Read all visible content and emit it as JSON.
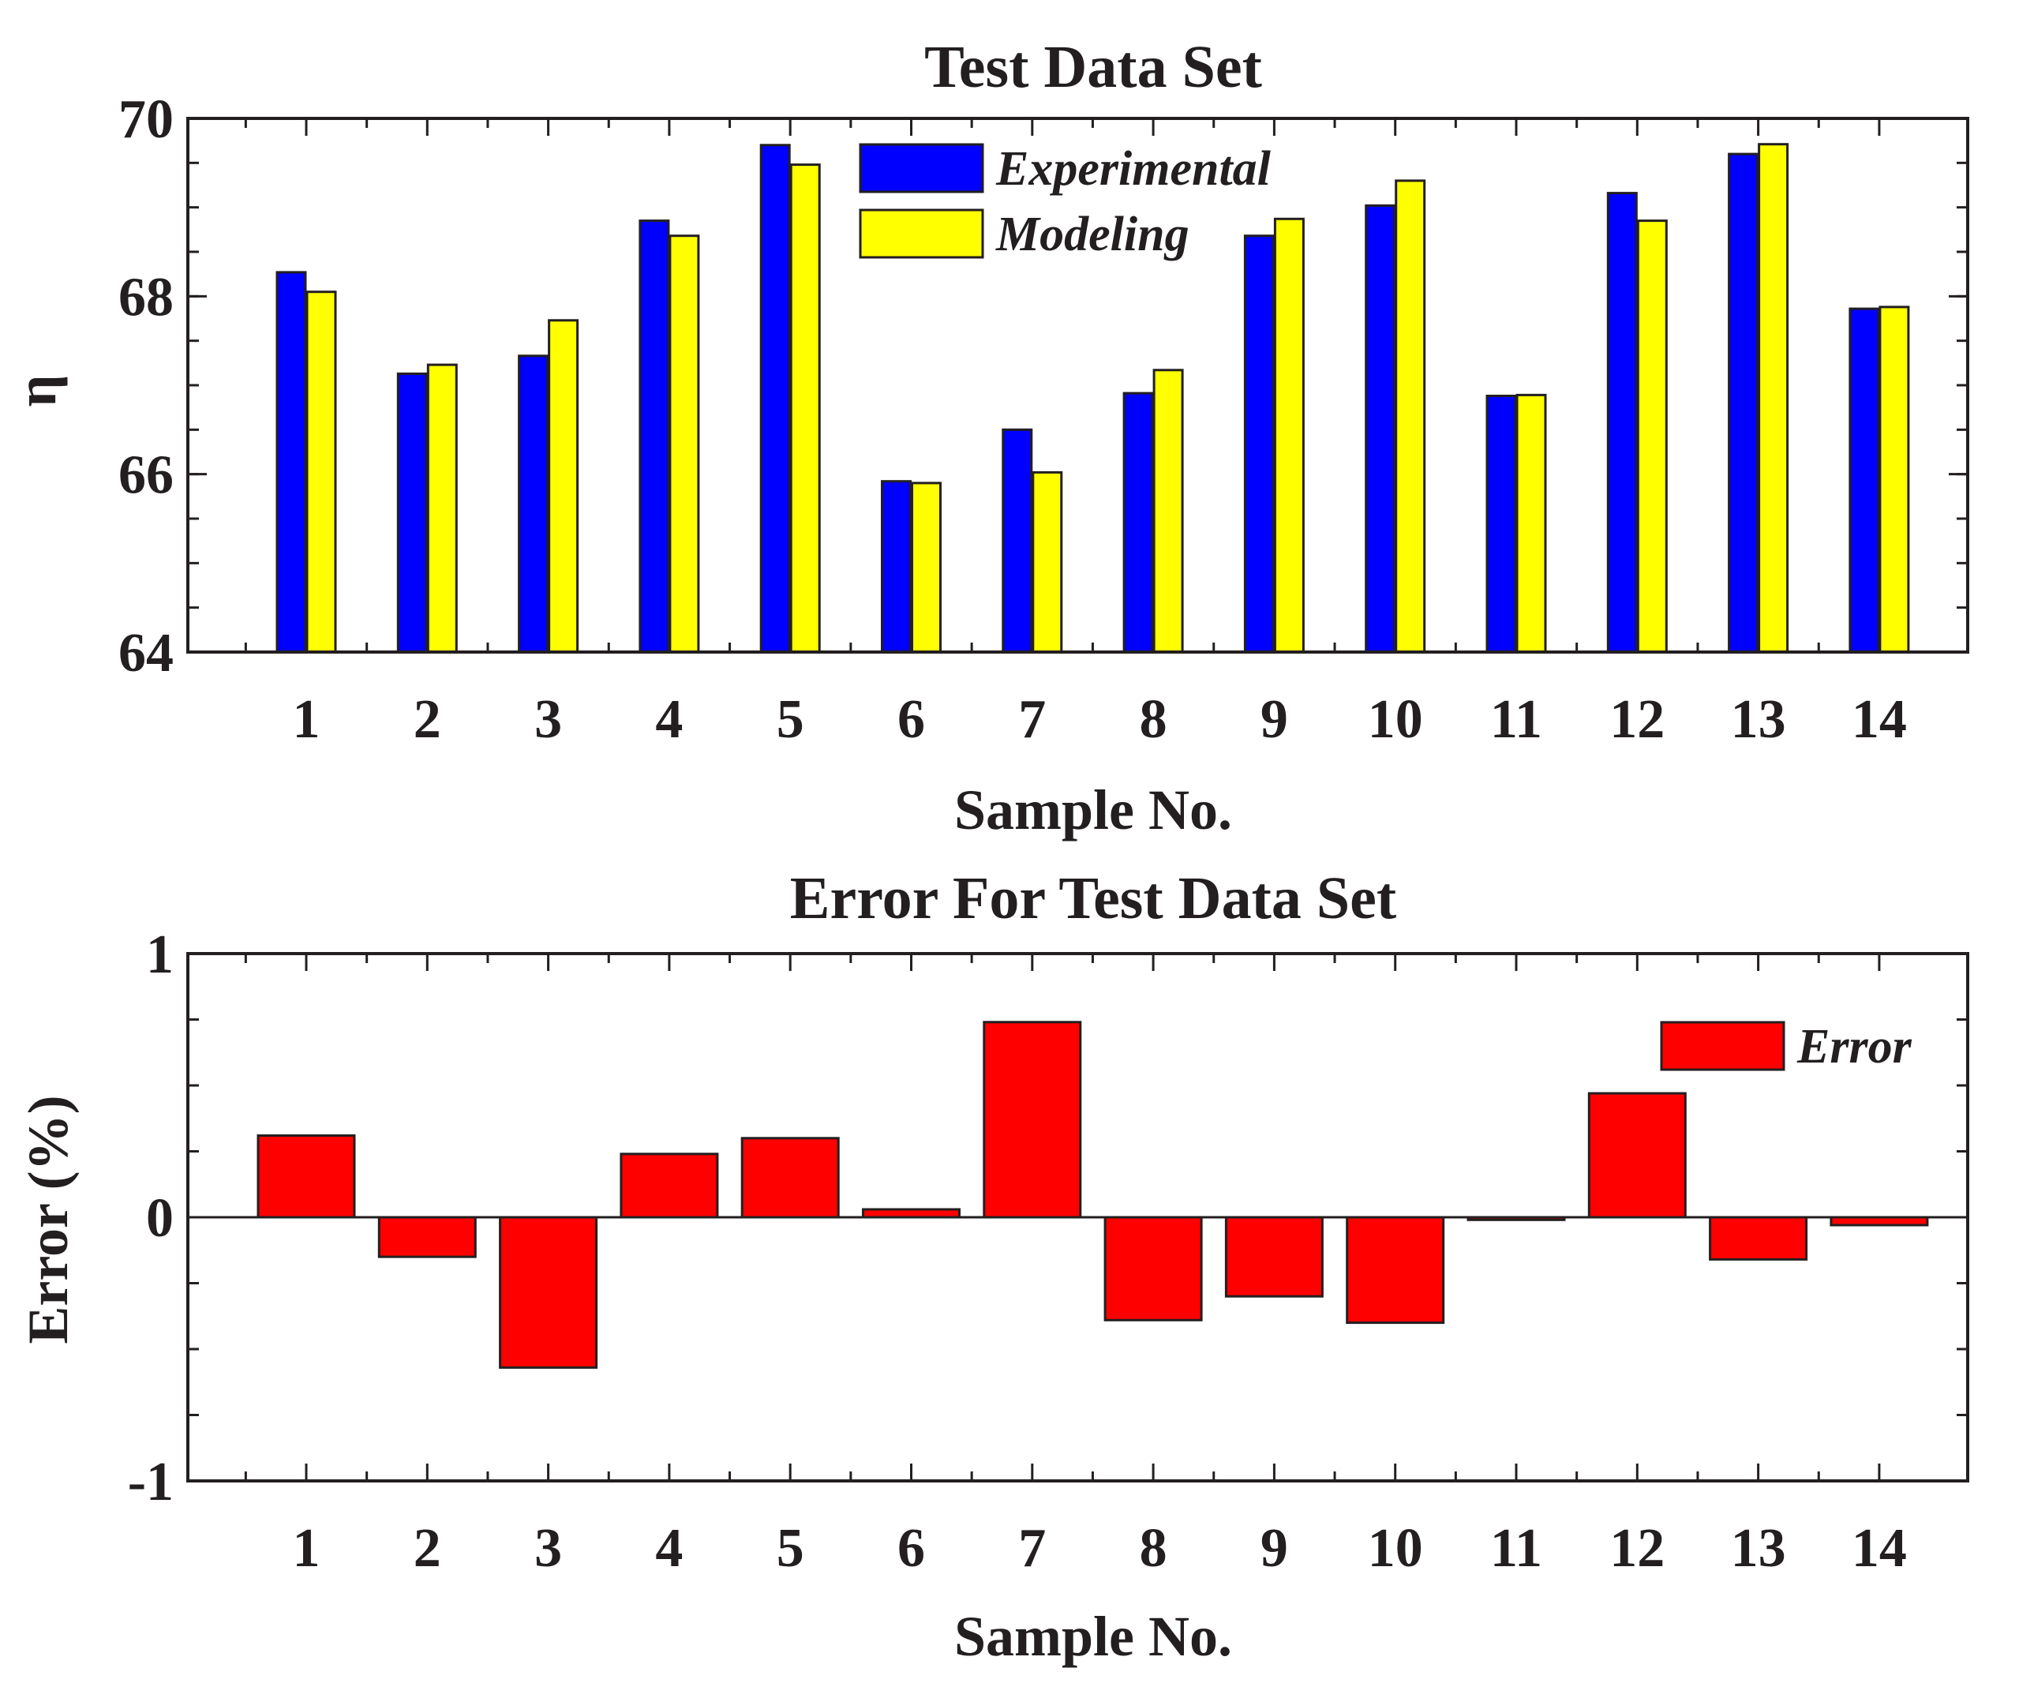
{
  "chart_data": [
    {
      "type": "bar",
      "title": "Test Data Set",
      "xlabel": "Sample No.",
      "ylabel": "η",
      "ylim": [
        64,
        70
      ],
      "yticks": [
        64,
        66,
        68,
        70
      ],
      "categories": [
        "1",
        "2",
        "3",
        "4",
        "5",
        "6",
        "7",
        "8",
        "9",
        "10",
        "11",
        "12",
        "13",
        "14"
      ],
      "series": [
        {
          "name": "Experimental",
          "color": "#0000ff",
          "values": [
            68.27,
            67.13,
            67.33,
            68.85,
            69.7,
            65.92,
            66.5,
            66.91,
            68.68,
            69.02,
            66.88,
            69.16,
            69.6,
            67.86
          ]
        },
        {
          "name": "Modeling",
          "color": "#ffff00",
          "values": [
            68.05,
            67.23,
            67.73,
            68.68,
            69.48,
            65.9,
            66.02,
            67.17,
            68.87,
            69.3,
            66.89,
            68.85,
            69.71,
            67.88
          ]
        }
      ],
      "legend": "top-center"
    },
    {
      "type": "bar",
      "title": "Error For Test Data Set",
      "xlabel": "Sample No.",
      "ylabel": "Error (%)",
      "ylim": [
        -1,
        1
      ],
      "yticks": [
        -1,
        0,
        1
      ],
      "categories": [
        "1",
        "2",
        "3",
        "4",
        "5",
        "6",
        "7",
        "8",
        "9",
        "10",
        "11",
        "12",
        "13",
        "14"
      ],
      "series": [
        {
          "name": "Error",
          "color": "#ff0000",
          "values": [
            0.31,
            -0.15,
            -0.57,
            0.24,
            0.3,
            0.03,
            0.74,
            -0.39,
            -0.3,
            -0.4,
            -0.01,
            0.47,
            -0.16,
            -0.03
          ]
        }
      ],
      "legend": "top-right"
    }
  ]
}
